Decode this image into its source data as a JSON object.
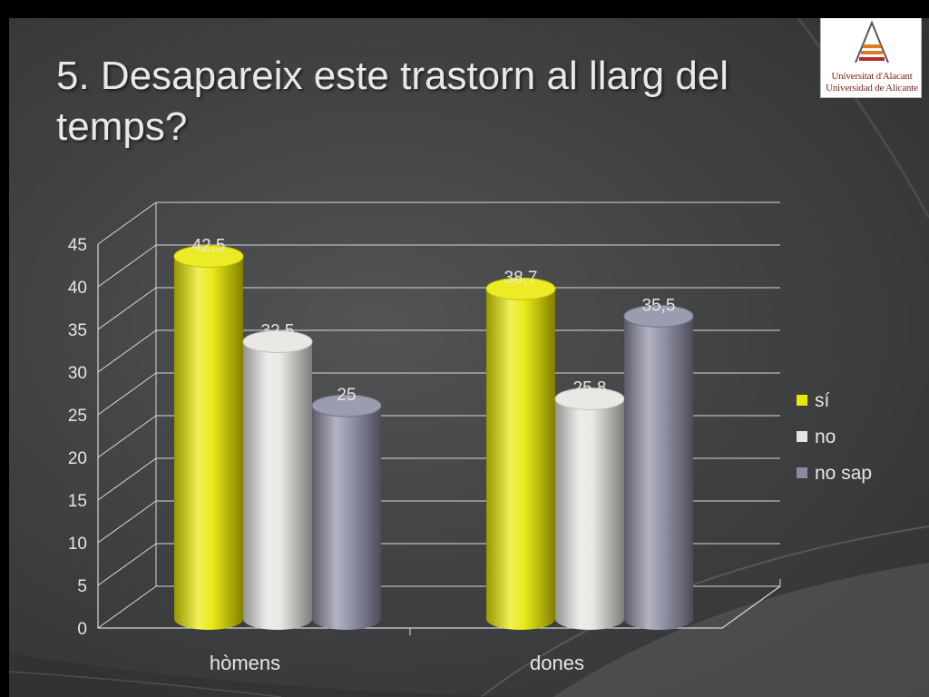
{
  "slide": {
    "title": "5. Desapareix este trastorn al llarg del temps?",
    "logo": {
      "line1": "Universitat d'Alacant",
      "line2": "Universidad de Alicante"
    }
  },
  "colors": {
    "series": [
      "#e8e800",
      "#e4e4e0",
      "#8a8aa2"
    ],
    "text": "#e6e6e6",
    "grid": "#d8d8d8"
  },
  "chart_data": {
    "type": "bar",
    "style": "3d-cylinder",
    "title": "",
    "xlabel": "",
    "ylabel": "",
    "categories": [
      "hòmens",
      "dones"
    ],
    "series": [
      {
        "name": "sí",
        "values": [
          42.5,
          38.7
        ],
        "labels": [
          "42,5",
          "38,7"
        ]
      },
      {
        "name": "no",
        "values": [
          32.5,
          25.8
        ],
        "labels": [
          "32,5",
          "25,8"
        ]
      },
      {
        "name": "no sap",
        "values": [
          25,
          35.5
        ],
        "labels": [
          "25",
          "35,5"
        ]
      }
    ],
    "ylim": [
      0,
      45
    ],
    "yticks": [
      0,
      5,
      10,
      15,
      20,
      25,
      30,
      35,
      40,
      45
    ],
    "grid": true,
    "legend": "right"
  }
}
